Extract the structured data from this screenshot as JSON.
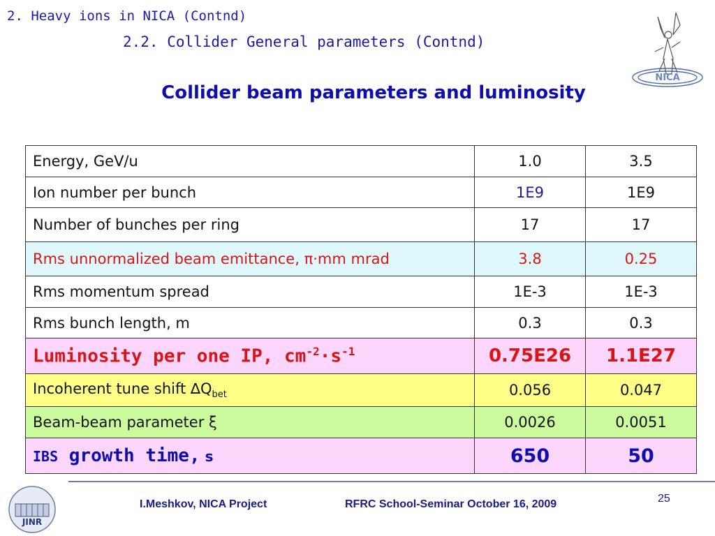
{
  "header": {
    "section": "2. Heavy ions in NICA (Contnd)",
    "subsection": "2.2. Collider General parameters (Contnd)",
    "title": "Collider beam parameters and luminosity"
  },
  "table": {
    "rows": [
      {
        "label": "Energy, GeV/u",
        "v1": "1.0",
        "v2": "3.5"
      },
      {
        "label": "Ion number per bunch",
        "v1": "1E9",
        "v2": "1E9"
      },
      {
        "label": "Number of bunches per ring",
        "v1": "17",
        "v2": "17"
      },
      {
        "label": "Rms unnormalized beam emittance, ",
        "label_symbol": "π",
        "label_suffix": "·mm mrad",
        "v1": "3.8",
        "v2": "0.25"
      },
      {
        "label": "Rms momentum spread",
        "v1": "1E-3",
        "v2": "1E-3"
      },
      {
        "label": "Rms bunch length, m",
        "v1": "0.3",
        "v2": "0.3"
      },
      {
        "label": "Luminosity per one IP, cm",
        "sup1": "-2",
        "mid": "·s",
        "sup2": "-1",
        "v1": "0.75E26",
        "v2": "1.1E27"
      },
      {
        "label": "Incoherent tune shift ",
        "symbol": "∆",
        "q": "Q",
        "sub": "bet",
        "v1": "0.056",
        "v2": "0.047"
      },
      {
        "label": "Beam-beam parameter ",
        "symbol": "ξ",
        "v1": "0.0026",
        "v2": "0.0051"
      },
      {
        "label_a": "IBS",
        "label_b": " growth time,",
        "label_c": " s",
        "v1": "650",
        "v2": "50"
      }
    ]
  },
  "footer": {
    "author": "I.Meshkov, NICA Project",
    "event": "RFRC School-Seminar October 16, 2009",
    "page_number": "25"
  },
  "logos": {
    "top": "nica-angel-logo",
    "bottom_caption": "JINR"
  },
  "colors": {
    "text_blue": "#1a1aa6",
    "title_blue": "#0d0db0",
    "red": "#d81414",
    "row_cyan": "#dff8fb",
    "row_pink": "#fdd6fd",
    "row_yellow": "#ffff88",
    "row_green": "#ccfb9e"
  }
}
